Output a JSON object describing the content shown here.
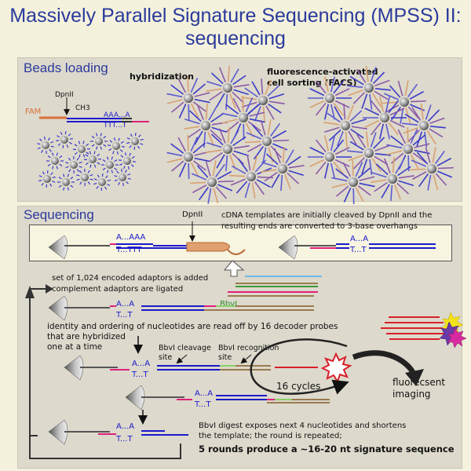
{
  "title_line1": "Massively Parallel Signature Sequencing (MPSS) II:",
  "title_line2": "sequencing",
  "beads_loading": {
    "heading": "Beads loading",
    "hybridization": "hybridization",
    "facs_line1": "fluorescence-activated",
    "facs_line2": "cell sorting (FACS)",
    "fam": "FAM",
    "dpnii": "DpnII",
    "ch3": "CH3",
    "aaa": "AAA...A",
    "ttt": "TTT...T"
  },
  "sequencing": {
    "heading": "Sequencing",
    "dpnii": "DpnII",
    "cdna_line1": "cDNA templates are initially cleaved by DpnII and the",
    "cdna_line2": "resulting ends are converted to 3-base overhangs",
    "strand_a_long": "A...AAA",
    "strand_t_long": "T...TTT",
    "strand_a": "A...A",
    "strand_t": "T...T",
    "adaptors_line1": "set of 1,024 encoded adaptors is added",
    "adaptors_line2": "complement adaptors are ligated",
    "bbvi": "BbvI",
    "decoder_line1": "identity and ordering of nucleotides are read off by 16 decoder probes",
    "decoder_line2": "that are hybridized",
    "decoder_line3": "one at a time",
    "cleavage_line1": "BbvI cleavage",
    "cleavage_line2": "site",
    "recognition_line1": "BbvI recognition",
    "recognition_line2": "site",
    "cycles": "16 cycles",
    "imaging_line1": "fluorecsent",
    "imaging_line2": "imaging",
    "digest_line1": "BbvI digest exposes next 4 nucleotides and shortens",
    "digest_line2": "the template; the round is repeated;",
    "rounds": "5 rounds produce a ~16-20 nt signature sequence"
  },
  "colors": {
    "title": "#2b3a9c",
    "fam": "#d9703a",
    "blue_strand": "#1a1acc",
    "magenta": "#e0207a",
    "probe_red": "#d8202a",
    "bead": "#8a8a8a"
  }
}
